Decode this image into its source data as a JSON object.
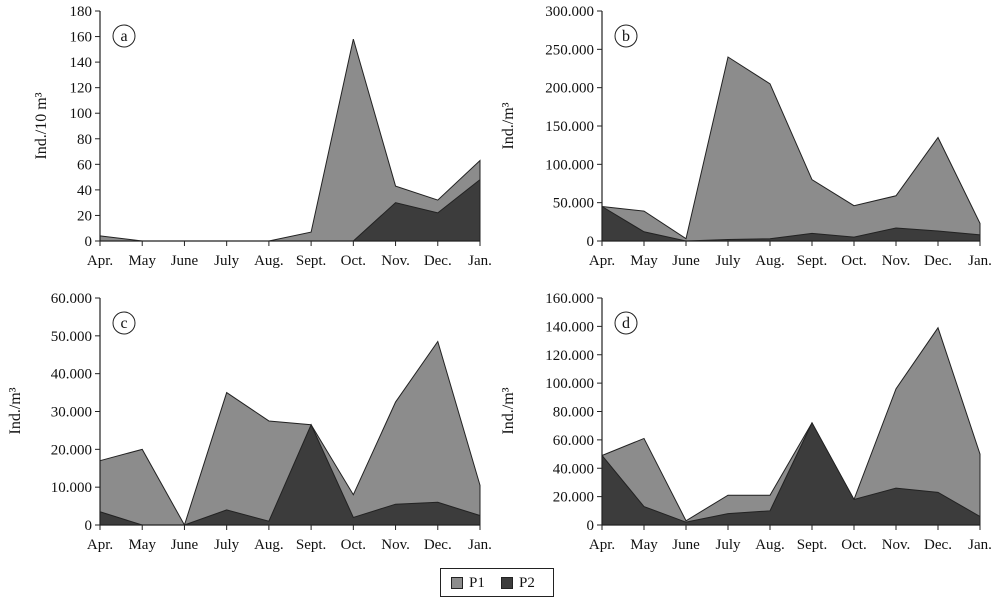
{
  "colors": {
    "P1": "#8c8c8c",
    "P2": "#3c3c3c",
    "axis": "#222222"
  },
  "legend": {
    "items": [
      {
        "label": "P1"
      },
      {
        "label": "P2"
      }
    ]
  },
  "chart_data": [
    {
      "id": "a",
      "type": "area",
      "panel_label": "a",
      "ylabel": "Ind./10 m³",
      "categories": [
        "Apr.",
        "May",
        "June",
        "July",
        "Aug.",
        "Sept.",
        "Oct.",
        "Nov.",
        "Dec.",
        "Jan."
      ],
      "ylim": [
        0,
        180
      ],
      "yticks": [
        0,
        20,
        40,
        60,
        80,
        100,
        120,
        140,
        160,
        180
      ],
      "ytick_labels": [
        "0",
        "20",
        "40",
        "60",
        "80",
        "100",
        "120",
        "140",
        "160",
        "180"
      ],
      "stacked": true,
      "series": [
        {
          "name": "P2",
          "values": [
            0,
            0,
            0,
            0,
            0,
            0,
            0,
            30,
            22,
            48
          ]
        },
        {
          "name": "P1",
          "values": [
            4,
            0,
            0,
            0,
            0,
            7,
            158,
            13,
            10,
            15
          ]
        }
      ]
    },
    {
      "id": "b",
      "type": "area",
      "panel_label": "b",
      "ylabel": "Ind./m³",
      "categories": [
        "Apr.",
        "May",
        "June",
        "July",
        "Aug.",
        "Sept.",
        "Oct.",
        "Nov.",
        "Dec.",
        "Jan."
      ],
      "ylim": [
        0,
        300000
      ],
      "yticks": [
        0,
        50000,
        100000,
        150000,
        200000,
        250000,
        300000
      ],
      "ytick_labels": [
        "0",
        "50.000",
        "100.000",
        "150.000",
        "200.000",
        "250.000",
        "300.000"
      ],
      "stacked": true,
      "series": [
        {
          "name": "P2",
          "values": [
            45000,
            12000,
            0,
            2000,
            3000,
            10000,
            5000,
            17000,
            13000,
            8000
          ]
        },
        {
          "name": "P1",
          "values": [
            0,
            27000,
            3000,
            238000,
            202000,
            70000,
            41000,
            42000,
            122000,
            15000
          ]
        }
      ]
    },
    {
      "id": "c",
      "type": "area",
      "panel_label": "c",
      "ylabel": "Ind./m³",
      "categories": [
        "Apr.",
        "May",
        "June",
        "July",
        "Aug.",
        "Sept.",
        "Oct.",
        "Nov.",
        "Dec.",
        "Jan."
      ],
      "ylim": [
        0,
        60000
      ],
      "yticks": [
        0,
        10000,
        20000,
        30000,
        40000,
        50000,
        60000
      ],
      "ytick_labels": [
        "0",
        "10.000",
        "20.000",
        "30.000",
        "40.000",
        "50.000",
        "60.000"
      ],
      "stacked": true,
      "series": [
        {
          "name": "P2",
          "values": [
            3500,
            0,
            0,
            4000,
            1000,
            26500,
            2000,
            5500,
            6000,
            2500
          ]
        },
        {
          "name": "P1",
          "values": [
            13500,
            20000,
            0,
            31000,
            26500,
            0,
            6000,
            27000,
            42500,
            8000
          ]
        }
      ]
    },
    {
      "id": "d",
      "type": "area",
      "panel_label": "d",
      "ylabel": "Ind./m³",
      "categories": [
        "Apr.",
        "May",
        "June",
        "July",
        "Aug.",
        "Sept.",
        "Oct.",
        "Nov.",
        "Dec.",
        "Jan."
      ],
      "ylim": [
        0,
        160000
      ],
      "yticks": [
        0,
        20000,
        40000,
        60000,
        80000,
        100000,
        120000,
        140000,
        160000
      ],
      "ytick_labels": [
        "0",
        "20.000",
        "40.000",
        "60.000",
        "80.000",
        "100.000",
        "120.000",
        "140.000",
        "160.000"
      ],
      "stacked": true,
      "series": [
        {
          "name": "P2",
          "values": [
            49000,
            13000,
            2000,
            8000,
            10000,
            72000,
            18000,
            26000,
            23000,
            6000
          ]
        },
        {
          "name": "P1",
          "values": [
            0,
            48000,
            1000,
            13000,
            11000,
            0,
            0,
            70000,
            116000,
            44000
          ]
        }
      ]
    }
  ]
}
